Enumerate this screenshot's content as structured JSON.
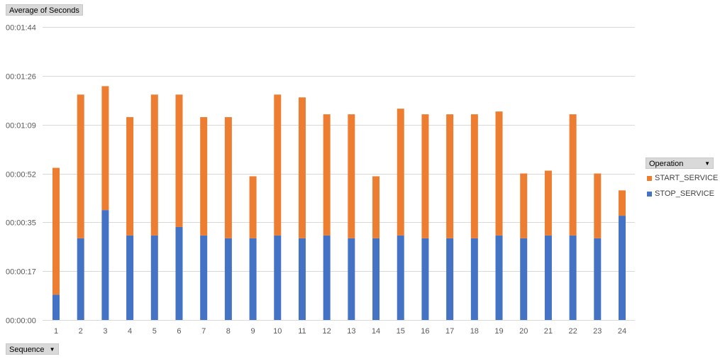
{
  "field_buttons": {
    "measure": "Average of Seconds",
    "axis_field": "Sequence",
    "legend_field": "Operation"
  },
  "icons": {
    "dropdown": "chevron-down-icon"
  },
  "colors": {
    "STOP_SERVICE": "#4472c4",
    "START_SERVICE": "#ed7d31",
    "grid": "#d9d9d9"
  },
  "chart_data": {
    "type": "bar",
    "stacked": true,
    "title": "",
    "xlabel": "Sequence",
    "ylabel": "Average of Seconds",
    "categories": [
      "1",
      "2",
      "3",
      "4",
      "5",
      "6",
      "7",
      "8",
      "9",
      "10",
      "11",
      "12",
      "13",
      "14",
      "15",
      "16",
      "17",
      "18",
      "19",
      "20",
      "21",
      "22",
      "23",
      "24"
    ],
    "y_ticks": [
      "00:00:00",
      "00:00:17",
      "00:00:35",
      "00:00:52",
      "00:01:09",
      "00:01:26",
      "00:01:44"
    ],
    "y_tick_seconds": [
      0,
      17.333,
      34.667,
      52,
      69.333,
      86.667,
      104
    ],
    "ylim_seconds": [
      0,
      104
    ],
    "legend_position": "right",
    "grid": true,
    "series": [
      {
        "name": "STOP_SERVICE",
        "values": [
          9,
          29,
          39,
          30,
          30,
          33,
          30,
          29,
          29,
          30,
          29,
          30,
          29,
          29,
          30,
          29,
          29,
          29,
          30,
          29,
          30,
          30,
          29,
          37
        ]
      },
      {
        "name": "START_SERVICE",
        "values": [
          45,
          51,
          44,
          42,
          50,
          47,
          42,
          43,
          22,
          50,
          50,
          43,
          44,
          22,
          45,
          44,
          44,
          44,
          44,
          23,
          23,
          43,
          23,
          9
        ]
      }
    ]
  }
}
